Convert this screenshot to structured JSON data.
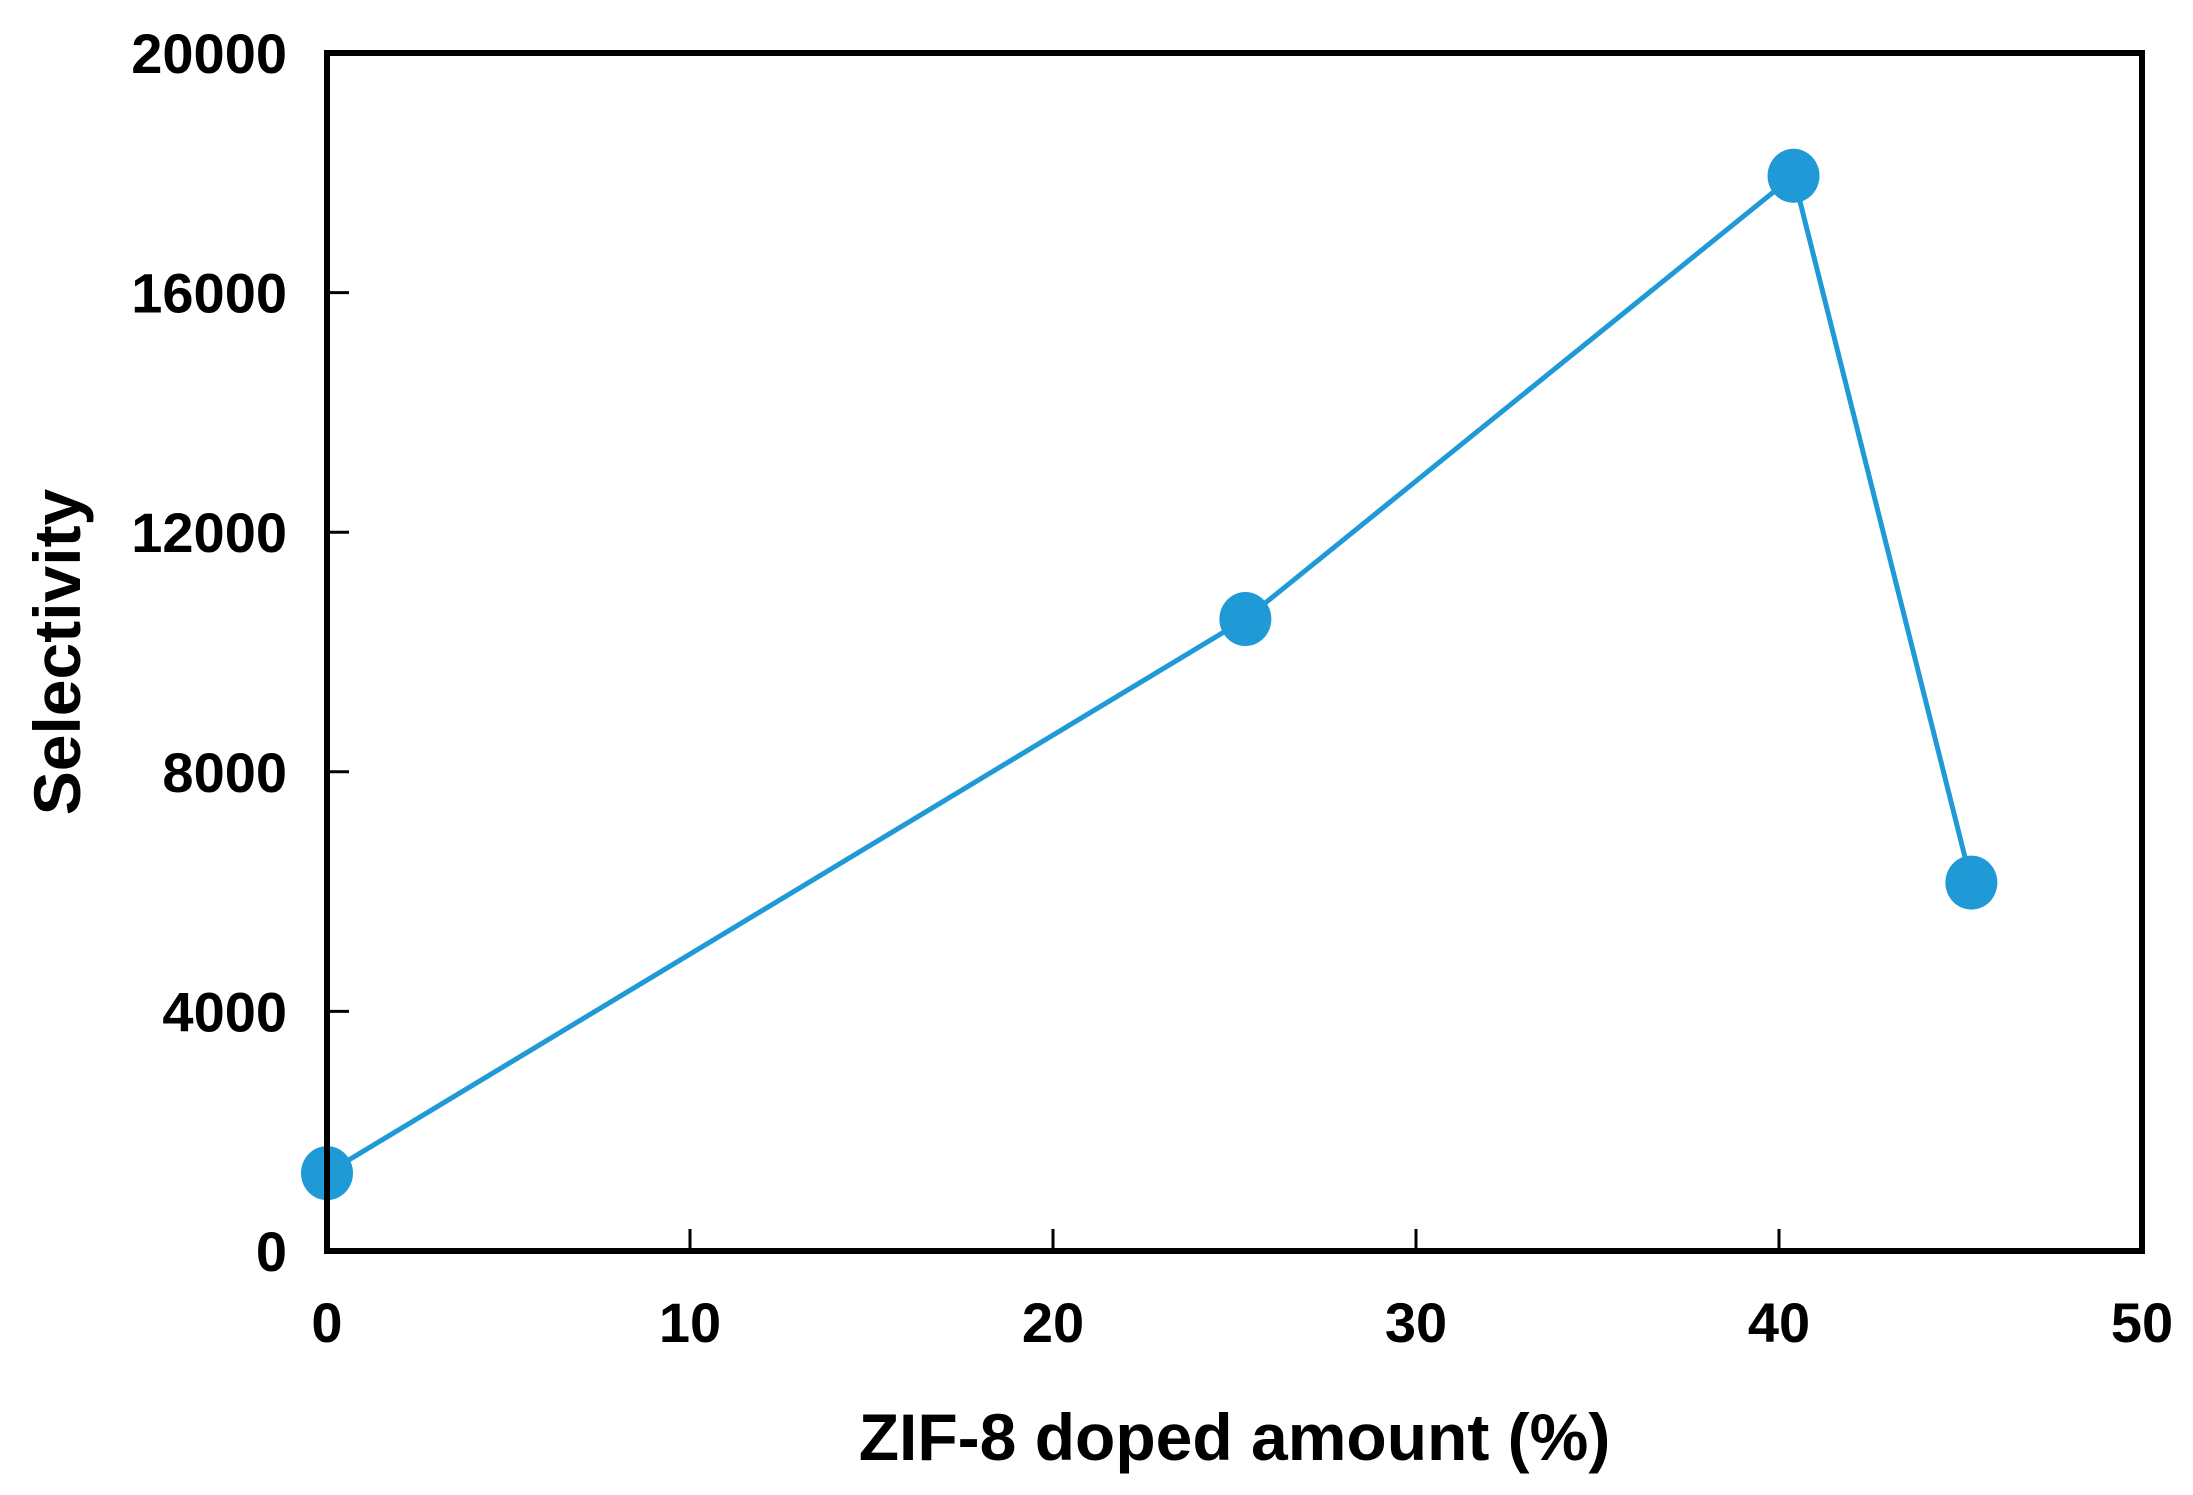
{
  "chart_data": {
    "type": "line",
    "title": "",
    "xlabel": "ZIF-8 doped amount (%)",
    "ylabel": "Selectivity",
    "xlim": [
      0,
      50
    ],
    "ylim": [
      0,
      20000
    ],
    "xticks": [
      0,
      10,
      20,
      30,
      40,
      50
    ],
    "yticks": [
      0,
      4000,
      8000,
      12000,
      16000,
      20000
    ],
    "xtick_labels": [
      "0",
      "10",
      "20",
      "30",
      "40",
      "50"
    ],
    "ytick_labels": [
      "0",
      "4000",
      "8000",
      "12000",
      "16000",
      "20000"
    ],
    "grid": false,
    "legend": "none",
    "series": [
      {
        "color": "#1f9ad6",
        "marker": "circle",
        "x": [
          0,
          25.3,
          40.4,
          45.3
        ],
        "y": [
          1300,
          10550,
          17950,
          6150
        ]
      }
    ]
  }
}
